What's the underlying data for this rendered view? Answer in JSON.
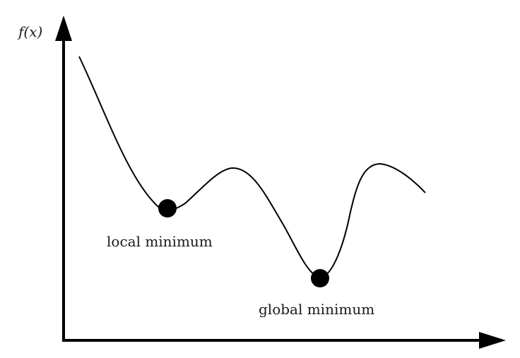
{
  "axes": {
    "y_label": "f(x)"
  },
  "annotations": {
    "local_minimum_label": "local minimum",
    "global_minimum_label": "global minimum"
  },
  "colors": {
    "ink": "#000000"
  }
}
